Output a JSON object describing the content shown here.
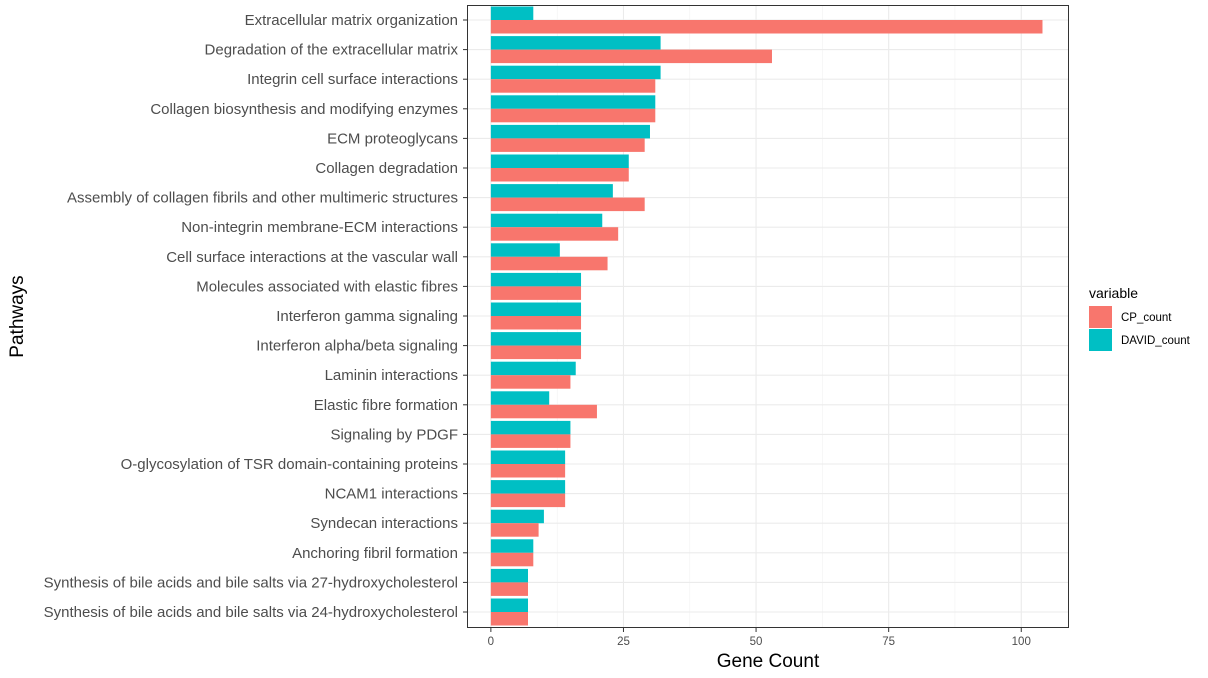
{
  "chart_data": {
    "type": "bar",
    "orientation": "horizontal",
    "xlabel": "Gene Count",
    "ylabel": "Pathways",
    "xlim": [
      -4.5,
      109
    ],
    "xticks": [
      0,
      25,
      50,
      75,
      100
    ],
    "grid": true,
    "legend": {
      "title": "variable",
      "position": "right"
    },
    "categories": [
      "Extracellular matrix organization",
      "Degradation of the extracellular matrix",
      "Integrin cell surface interactions",
      "Collagen biosynthesis and modifying enzymes",
      "ECM proteoglycans",
      "Collagen degradation",
      "Assembly of collagen fibrils and other multimeric structures",
      "Non-integrin membrane-ECM interactions",
      "Cell surface interactions at the vascular wall",
      "Molecules associated with elastic fibres",
      "Interferon gamma signaling",
      "Interferon alpha/beta signaling",
      "Laminin interactions",
      "Elastic fibre formation",
      "Signaling by PDGF",
      "O-glycosylation of TSR domain-containing proteins",
      "NCAM1 interactions",
      "Syndecan interactions",
      "Anchoring fibril formation",
      "Synthesis of bile acids and bile salts via 27-hydroxycholesterol",
      "Synthesis of bile acids and bile salts via 24-hydroxycholesterol"
    ],
    "series": [
      {
        "name": "CP_count",
        "color": "#F8766D",
        "values": [
          104,
          53,
          31,
          31,
          29,
          26,
          29,
          24,
          22,
          17,
          17,
          17,
          15,
          20,
          15,
          14,
          14,
          9,
          8,
          7,
          7
        ]
      },
      {
        "name": "DAVID_count",
        "color": "#00BFC4",
        "values": [
          8,
          32,
          32,
          31,
          30,
          26,
          23,
          21,
          13,
          17,
          17,
          17,
          16,
          11,
          15,
          14,
          14,
          10,
          8,
          7,
          7
        ]
      }
    ]
  }
}
